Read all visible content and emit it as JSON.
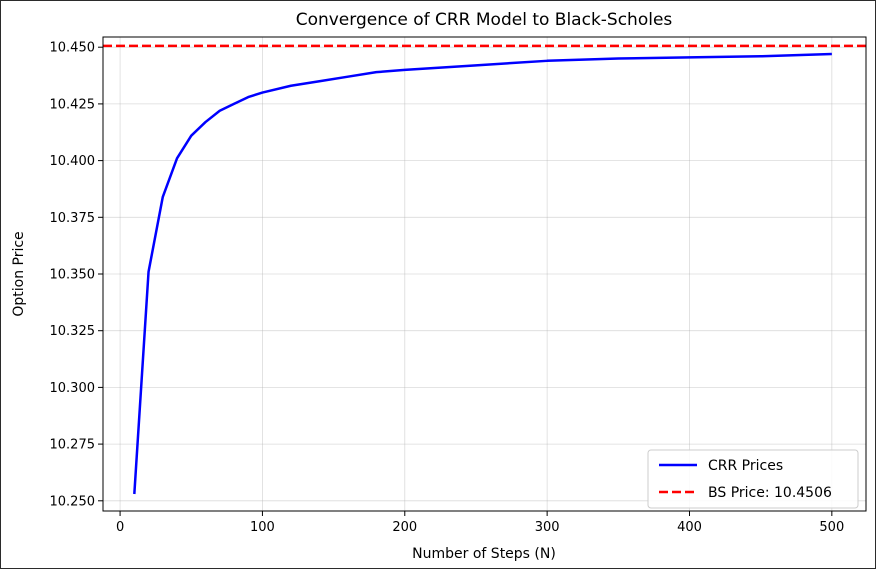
{
  "chart_data": {
    "type": "line",
    "title": "Convergence of CRR Model to Black-Scholes",
    "xlabel": "Number of Steps (N)",
    "ylabel": "Option Price",
    "xlim": [
      -12,
      524
    ],
    "ylim": [
      10.2455,
      10.4545
    ],
    "x_ticks": [
      0,
      100,
      200,
      300,
      400,
      500
    ],
    "y_ticks": [
      10.25,
      10.275,
      10.3,
      10.325,
      10.35,
      10.375,
      10.4,
      10.425,
      10.45
    ],
    "y_tick_labels": [
      "10.250",
      "10.275",
      "10.300",
      "10.325",
      "10.350",
      "10.375",
      "10.400",
      "10.425",
      "10.450"
    ],
    "grid": true,
    "legend_position": "lower-right",
    "series": [
      {
        "name": "CRR Prices",
        "color": "#0000ff",
        "style": "solid",
        "x": [
          10,
          20,
          30,
          40,
          50,
          60,
          70,
          80,
          90,
          100,
          120,
          140,
          160,
          180,
          200,
          250,
          300,
          350,
          400,
          450,
          500
        ],
        "y": [
          10.253,
          10.351,
          10.384,
          10.401,
          10.411,
          10.417,
          10.422,
          10.425,
          10.428,
          10.43,
          10.433,
          10.435,
          10.437,
          10.439,
          10.44,
          10.442,
          10.444,
          10.445,
          10.4455,
          10.446,
          10.447
        ]
      },
      {
        "name": "BS Price: 10.4506",
        "color": "#ff0000",
        "style": "dashed",
        "hline": 10.4506
      }
    ]
  }
}
